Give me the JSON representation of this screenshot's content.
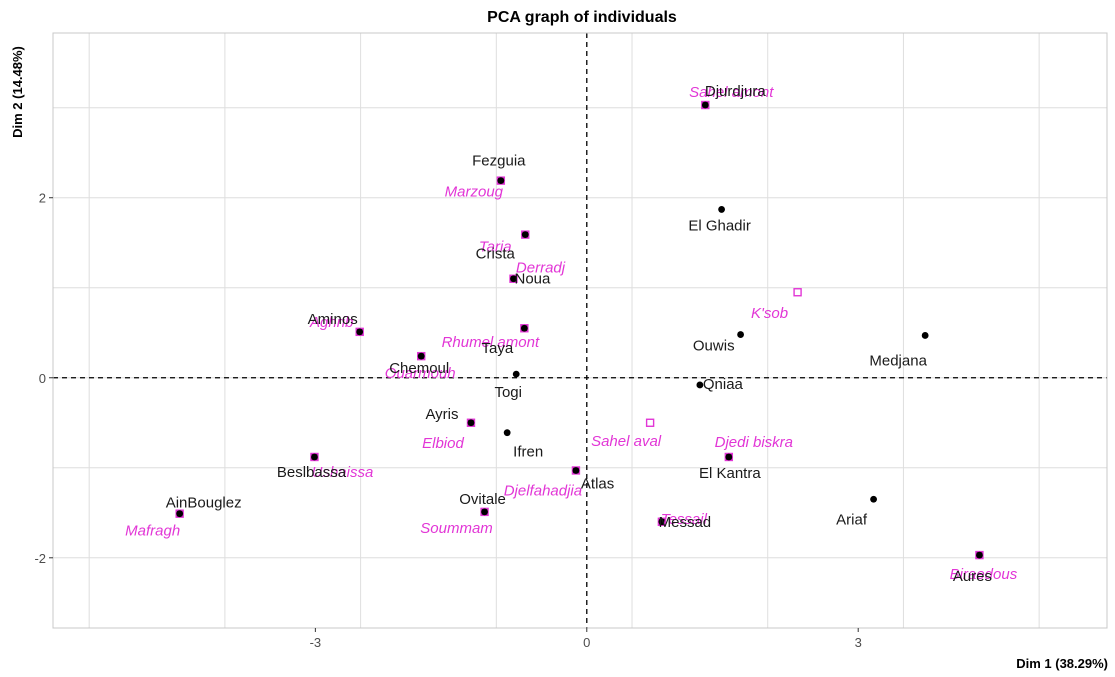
{
  "chart_data": {
    "type": "scatter",
    "title": "PCA graph of individuals",
    "xlabel": "Dim 1 (38.29%)",
    "ylabel": "Dim 2 (14.48%)",
    "xlim": [
      -5.9,
      5.75
    ],
    "ylim": [
      -2.78,
      3.83
    ],
    "x_ticks": [
      -3,
      0,
      3
    ],
    "y_ticks": [
      -2,
      0,
      2
    ],
    "grid": true,
    "colors": {
      "active": "#000000",
      "supplementary": "#e236d6",
      "grid": "#dedede",
      "panel_border": "#c8c8c8"
    },
    "active_points": [
      {
        "label": "Djurdjura",
        "x": 1.31,
        "y": 3.03
      },
      {
        "label": "Fezguia",
        "x": -0.95,
        "y": 2.19
      },
      {
        "label": "El Ghadir",
        "x": 1.49,
        "y": 1.87
      },
      {
        "label": "Crista",
        "x": -0.68,
        "y": 1.59
      },
      {
        "label": "Noua",
        "x": -0.81,
        "y": 1.1
      },
      {
        "label": "Aminos",
        "x": -2.51,
        "y": 0.51
      },
      {
        "label": "Taya",
        "x": -0.69,
        "y": 0.55
      },
      {
        "label": "Ouwis",
        "x": 1.7,
        "y": 0.48
      },
      {
        "label": "Medjana",
        "x": 3.74,
        "y": 0.47
      },
      {
        "label": "Chemoul",
        "x": -1.83,
        "y": 0.24
      },
      {
        "label": "Togi",
        "x": -0.78,
        "y": 0.04
      },
      {
        "label": "Qniaa",
        "x": 1.25,
        "y": -0.08
      },
      {
        "label": "Ayris",
        "x": -1.28,
        "y": -0.5
      },
      {
        "label": "Ifren",
        "x": -0.88,
        "y": -0.61
      },
      {
        "label": "Beslbassa",
        "x": -3.01,
        "y": -0.88
      },
      {
        "label": "El Kantra",
        "x": 1.57,
        "y": -0.88
      },
      {
        "label": "Atlas",
        "x": -0.12,
        "y": -1.03
      },
      {
        "label": "AinBouglez",
        "x": -4.5,
        "y": -1.51
      },
      {
        "label": "Ovitale",
        "x": -1.13,
        "y": -1.49
      },
      {
        "label": "Messad",
        "x": 0.83,
        "y": -1.6
      },
      {
        "label": "Ariaf",
        "x": 3.17,
        "y": -1.35
      },
      {
        "label": "Aures",
        "x": 4.34,
        "y": -1.97
      }
    ],
    "supplementary_points": [
      {
        "label": "Sahel amont",
        "x": 1.31,
        "y": 3.03,
        "filled": true
      },
      {
        "label": "Marzoug",
        "x": -0.95,
        "y": 2.19,
        "filled": true
      },
      {
        "label": "Taria",
        "x": -0.68,
        "y": 1.59,
        "filled": true
      },
      {
        "label": "Derradj",
        "x": -0.81,
        "y": 1.1,
        "filled": true
      },
      {
        "label": "K'sob",
        "x": 2.33,
        "y": 0.95,
        "filled": false
      },
      {
        "label": "Aghrib",
        "x": -2.51,
        "y": 0.51,
        "filled": true
      },
      {
        "label": "Rhumel amont",
        "x": -0.69,
        "y": 0.55,
        "filled": true
      },
      {
        "label": "Ouarmouh",
        "x": -1.83,
        "y": 0.24,
        "filled": true
      },
      {
        "label": "Elbiod",
        "x": -1.28,
        "y": -0.5,
        "filled": true
      },
      {
        "label": "Sahel aval",
        "x": 0.7,
        "y": -0.5,
        "filled": false
      },
      {
        "label": "Djedi biskra",
        "x": 1.57,
        "y": -0.88,
        "filled": true
      },
      {
        "label": "Ushaissa",
        "x": -3.01,
        "y": -0.88,
        "filled": true
      },
      {
        "label": "Djelfahadjia",
        "x": -0.12,
        "y": -1.03,
        "filled": true
      },
      {
        "label": "Mafragh",
        "x": -4.5,
        "y": -1.51,
        "filled": true
      },
      {
        "label": "Soummam",
        "x": -1.13,
        "y": -1.49,
        "filled": true
      },
      {
        "label": "Tessail",
        "x": 0.83,
        "y": -1.6,
        "filled": true
      },
      {
        "label": "Biraedous",
        "x": 4.34,
        "y": -1.97,
        "filled": true
      }
    ]
  }
}
